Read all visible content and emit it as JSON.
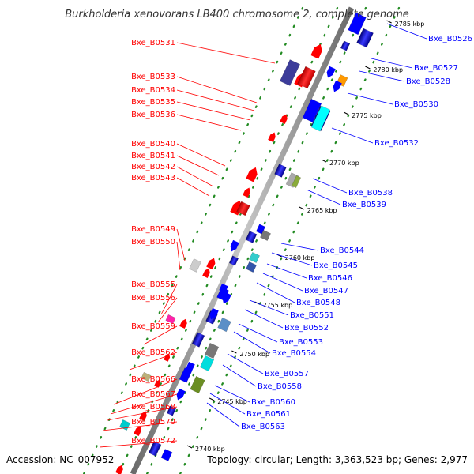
{
  "title": "Burkholderia xenovorans LB400 chromosome 2, complete genome",
  "footer": {
    "accession": "Accession: NC_007952",
    "summary": "Topology: circular; Length: 3,363,523 bp; Genes: 2,977"
  },
  "ticks": [
    "2785 kbp",
    "2780 kbp",
    "2775 kbp",
    "2770 kbp",
    "2765 kbp",
    "2760 kbp",
    "2755 kbp",
    "2750 kbp",
    "2745 kbp",
    "2740 kbp"
  ],
  "left_labels": [
    "Bxe_B0531",
    "Bxe_B0533",
    "Bxe_B0534",
    "Bxe_B0535",
    "Bxe_B0536",
    "Bxe_B0540",
    "Bxe_B0541",
    "Bxe_B0542",
    "Bxe_B0543",
    "Bxe_B0549",
    "Bxe_B0550",
    "Bxe_B0555",
    "Bxe_B0556",
    "Bxe_B0559",
    "Bxe_B0562",
    "Bxe_B0566",
    "Bxe_B0567",
    "Bxe_B0568",
    "Bxe_B0570",
    "Bxe_B0572"
  ],
  "right_labels": [
    "Bxe_B0526",
    "Bxe_B0527",
    "Bxe_B0528",
    "Bxe_B0530",
    "Bxe_B0532",
    "Bxe_B0538",
    "Bxe_B0539",
    "Bxe_B0544",
    "Bxe_B0545",
    "Bxe_B0546",
    "Bxe_B0547",
    "Bxe_B0548",
    "Bxe_B0551",
    "Bxe_B0552",
    "Bxe_B0553",
    "Bxe_B0554",
    "Bxe_B0557",
    "Bxe_B0558",
    "Bxe_B0560",
    "Bxe_B0561",
    "Bxe_B0563"
  ],
  "colors": {
    "forward_strand": "#0000ff",
    "reverse_strand": "#ff0000",
    "backbone": "#808080",
    "guide_dots": "#228b22"
  }
}
